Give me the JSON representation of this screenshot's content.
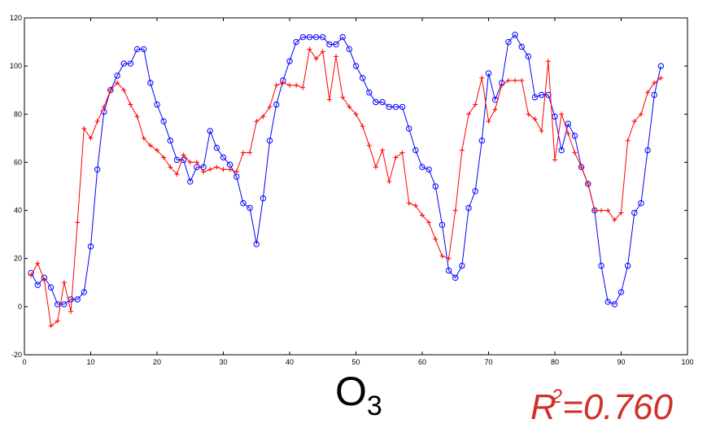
{
  "chart_data": {
    "type": "line",
    "title": "",
    "xlabel": "",
    "ylabel": "",
    "xlim": [
      0,
      100
    ],
    "ylim": [
      -20,
      120
    ],
    "xticks": [
      0,
      10,
      20,
      30,
      40,
      50,
      60,
      70,
      80,
      90,
      100
    ],
    "yticks": [
      -20,
      0,
      20,
      40,
      60,
      80,
      100,
      120
    ],
    "grid": false,
    "x": [
      1,
      2,
      3,
      4,
      5,
      6,
      7,
      8,
      9,
      10,
      11,
      12,
      13,
      14,
      15,
      16,
      17,
      18,
      19,
      20,
      21,
      22,
      23,
      24,
      25,
      26,
      27,
      28,
      29,
      30,
      31,
      32,
      33,
      34,
      35,
      36,
      37,
      38,
      39,
      40,
      41,
      42,
      43,
      44,
      45,
      46,
      47,
      48,
      49,
      50,
      51,
      52,
      53,
      54,
      55,
      56,
      57,
      58,
      59,
      60,
      61,
      62,
      63,
      64,
      65,
      66,
      67,
      68,
      69,
      70,
      71,
      72,
      73,
      74,
      75,
      76,
      77,
      78,
      79,
      80,
      81,
      82,
      83,
      84,
      85,
      86,
      87,
      88,
      89,
      90,
      91,
      92,
      93,
      94,
      95,
      96
    ],
    "series": [
      {
        "color": "#0000ff",
        "marker": "circle",
        "values": [
          14,
          9,
          12,
          8,
          1,
          1,
          3,
          3,
          6,
          25,
          57,
          81,
          90,
          96,
          101,
          101,
          107,
          107,
          93,
          84,
          77,
          69,
          61,
          61,
          52,
          58,
          58,
          73,
          66,
          62,
          59,
          54,
          43,
          41,
          26,
          45,
          69,
          84,
          94,
          102,
          110,
          112,
          112,
          112,
          112,
          109,
          109,
          112,
          107,
          100,
          95,
          89,
          85,
          85,
          83,
          83,
          83,
          74,
          65,
          58,
          57,
          50,
          34,
          15,
          12,
          17,
          41,
          48,
          69,
          97,
          86,
          93,
          110,
          113,
          108,
          104,
          87,
          88,
          88,
          79,
          65,
          76,
          71,
          58,
          51,
          40,
          17,
          2,
          1,
          6,
          17,
          39,
          43,
          65,
          88,
          100
        ]
      },
      {
        "color": "#ff0000",
        "marker": "plus",
        "values": [
          13,
          18,
          11,
          -8,
          -6,
          10,
          -2,
          35,
          74,
          70,
          77,
          83,
          90,
          93,
          90,
          84,
          79,
          70,
          67,
          65,
          62,
          58,
          55,
          63,
          60,
          60,
          56,
          57,
          58,
          57,
          57,
          56,
          64,
          64,
          77,
          79,
          83,
          92,
          93,
          92,
          92,
          91,
          107,
          103,
          106,
          86,
          104,
          87,
          83,
          80,
          75,
          67,
          58,
          65,
          52,
          62,
          64,
          43,
          42,
          38,
          35,
          28,
          21,
          20,
          40,
          65,
          80,
          84,
          95,
          77,
          82,
          92,
          94,
          94,
          94,
          80,
          78,
          73,
          102,
          61,
          80,
          72,
          64,
          58,
          51,
          40,
          40,
          40,
          36,
          39,
          69,
          77,
          80,
          89,
          93,
          95
        ]
      }
    ]
  },
  "labels": {
    "species": "O",
    "species_sub": "3",
    "r2_base": "R",
    "r2_sup": "2",
    "r2_value": "=0.760"
  }
}
